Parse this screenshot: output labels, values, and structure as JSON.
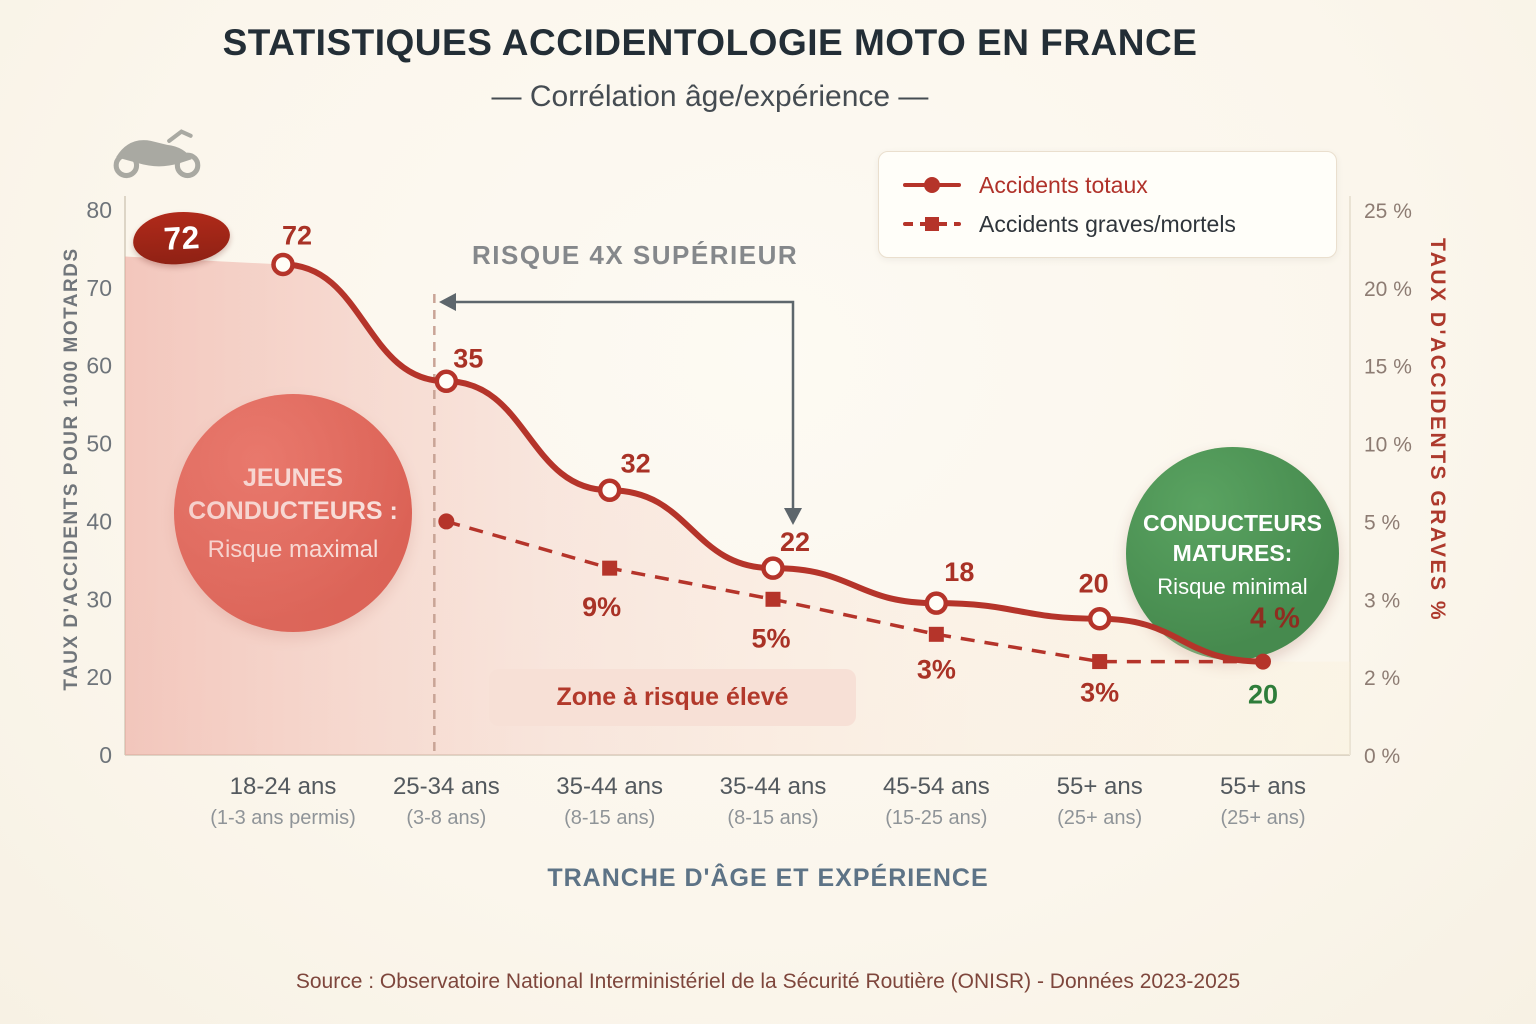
{
  "page": {
    "title": "STATISTIQUES ACCIDENTOLOGIE MOTO EN FRANCE",
    "subtitle": "— Corrélation âge/expérience —",
    "source": "Source : Observatoire National Interministériel de la Sécurité Routière (ONISR) - Données 2023-2025",
    "background_color": "#fbf6ec"
  },
  "legend": {
    "items": [
      {
        "label": "Accidents totaux",
        "marker": "circle",
        "line": "solid",
        "color": "#b5342a"
      },
      {
        "label": "Accidents graves/mortels",
        "marker": "square",
        "line": "dashed",
        "color": "#b5342a"
      }
    ]
  },
  "annotations": {
    "badge_value": "72",
    "risk_note": "RISQUE 4X SUPÉRIEUR",
    "young_drivers": {
      "line1": "JEUNES",
      "line2": "CONDUCTEURS :",
      "line3": "Risque maximal",
      "color": "#d02b1e"
    },
    "mature_drivers": {
      "line1": "CONDUCTEURS",
      "line2": "MATURES:",
      "line3": "Risque minimal",
      "color": "#4d9455"
    },
    "zone_banner": "Zone à risque élevé"
  },
  "axes": {
    "x_title": "TRANCHE D'ÂGE ET EXPÉRIENCE",
    "y_left_title": "TAUX D'ACCIDENTS POUR 1000 MOTARDS",
    "y_right_title": "TAUX D'ACCIDENTS GRAVES %",
    "y_left_ticks": [
      "80",
      "70",
      "60",
      "50",
      "40",
      "30",
      "20",
      "0"
    ],
    "y_right_ticks": [
      "25 %",
      "20 %",
      "15 %",
      "10 %",
      "5 %",
      "3 %",
      "2 %",
      "0 %"
    ]
  },
  "chart_data": {
    "type": "line",
    "title": "STATISTIQUES ACCIDENTOLOGIE MOTO EN FRANCE — Corrélation âge/expérience",
    "categories": [
      {
        "age": "18-24 ans",
        "exp": "(1-3 ans permis)"
      },
      {
        "age": "25-34 ans",
        "exp": "(3-8 ans)"
      },
      {
        "age": "35-44 ans",
        "exp": "(8-15 ans)"
      },
      {
        "age": "35-44 ans",
        "exp": "(8-15 ans)"
      },
      {
        "age": "45-54 ans",
        "exp": "(15-25 ans)"
      },
      {
        "age": "55+ ans",
        "exp": "(25+ ans)"
      },
      {
        "age": "55+ ans",
        "exp": "(25+ ans)"
      }
    ],
    "x_label": "TRANCHE D'ÂGE ET EXPÉRIENCE",
    "y_left": {
      "label": "TAUX D'ACCIDENTS POUR 1000 MOTARDS",
      "ticks": [
        80,
        70,
        60,
        50,
        40,
        30,
        20,
        0
      ],
      "range": [
        0,
        80
      ]
    },
    "y_right": {
      "label": "TAUX D'ACCIDENTS GRAVES %",
      "ticks": [
        25,
        20,
        15,
        10,
        5,
        3,
        2,
        0
      ],
      "range": [
        0,
        25
      ]
    },
    "legend_position": "top-right",
    "grid": false,
    "series": [
      {
        "name": "Accidents totaux",
        "axis": "left",
        "line": "solid",
        "marker": "circle",
        "color": "#b5342a",
        "values": [
          72,
          35,
          32,
          22,
          18,
          20,
          20
        ],
        "point_labels": [
          "72",
          "35",
          "32",
          "22",
          "18",
          "20",
          "20"
        ],
        "display_values": [
          73,
          58,
          44,
          34,
          29.5,
          27.5,
          22
        ]
      },
      {
        "name": "Accidents graves/mortels",
        "axis": "right",
        "line": "dashed",
        "marker": "square",
        "color": "#b5342a",
        "values": [
          null,
          null,
          9,
          5,
          3,
          3,
          4
        ],
        "point_labels": [
          "",
          "",
          "9%",
          "5%",
          "3%",
          "3%",
          "4 %"
        ],
        "display_values": [
          null,
          5,
          3.8,
          3,
          2.55,
          2.2,
          2.2
        ]
      }
    ],
    "annotations": [
      "72",
      "RISQUE 4X SUPÉRIEUR",
      "JEUNES CONDUCTEURS : Risque maximal",
      "CONDUCTEURS MATURES: Risque minimal",
      "Zone à risque élevé"
    ]
  },
  "colors": {
    "accent_red": "#b5342a",
    "label_red": "#a93226",
    "green_label": "#2e7d3a",
    "badge_bg": "#a3291c",
    "banner_bg": "#f7e0d6",
    "banner_text": "#b2392b",
    "background": "#fbf6ec"
  }
}
